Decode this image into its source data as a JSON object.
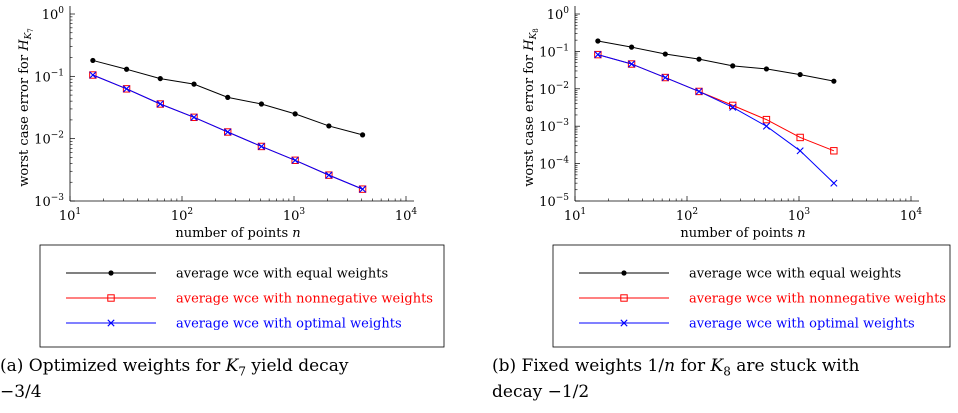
{
  "legend": {
    "equal": "average wce with equal weights",
    "nonneg": "average wce with nonnegative weights",
    "optimal": "average wce with optimal weights"
  },
  "colors": {
    "equal": "#000000",
    "nonneg": "#ff0000",
    "optimal": "#0000ff"
  },
  "chart_data": [
    {
      "type": "line",
      "xscale": "log",
      "yscale": "log",
      "xlabel": "number of points n",
      "ylabel": "worst case error for H_K7",
      "xlim": [
        10,
        10000
      ],
      "ylim": [
        0.001,
        1
      ],
      "xticks": [
        "10^1",
        "10^2",
        "10^3",
        "10^4"
      ],
      "yticks": [
        "10^-3",
        "10^-2",
        "10^-1",
        "10^0"
      ],
      "series": [
        {
          "name": "average wce with equal weights",
          "color": "#000000",
          "marker": "dot",
          "x": [
            16,
            32,
            64,
            128,
            256,
            512,
            1024,
            2048,
            4096
          ],
          "y": [
            0.18,
            0.13,
            0.092,
            0.075,
            0.046,
            0.036,
            0.025,
            0.016,
            0.0115
          ]
        },
        {
          "name": "average wce with nonnegative weights",
          "color": "#ff0000",
          "marker": "square",
          "x": [
            16,
            32,
            64,
            128,
            256,
            512,
            1024,
            2048,
            4096
          ],
          "y": [
            0.105,
            0.063,
            0.036,
            0.022,
            0.0128,
            0.0075,
            0.0045,
            0.0026,
            0.00155
          ]
        },
        {
          "name": "average wce with optimal weights",
          "color": "#0000ff",
          "marker": "x",
          "x": [
            16,
            32,
            64,
            128,
            256,
            512,
            1024,
            2048,
            4096
          ],
          "y": [
            0.105,
            0.063,
            0.036,
            0.022,
            0.0128,
            0.0075,
            0.0045,
            0.0026,
            0.00155
          ]
        }
      ],
      "legend_position": "below",
      "caption_prefix": "(a) Optimized weights for ",
      "caption_sym": "K",
      "caption_sub": "7",
      "caption_suffix": " yield decay",
      "caption_line2": "−3/4"
    },
    {
      "type": "line",
      "xscale": "log",
      "yscale": "log",
      "xlabel": "number of points n",
      "ylabel": "worst case error for H_K8",
      "xlim": [
        10,
        10000
      ],
      "ylim": [
        1e-05,
        1
      ],
      "xticks": [
        "10^1",
        "10^2",
        "10^3",
        "10^4"
      ],
      "yticks": [
        "10^-5",
        "10^-4",
        "10^-3",
        "10^-2",
        "10^-1",
        "10^0"
      ],
      "series": [
        {
          "name": "average wce with equal weights",
          "color": "#000000",
          "marker": "dot",
          "x": [
            16,
            32,
            64,
            128,
            256,
            512,
            1024,
            2048
          ],
          "y": [
            0.19,
            0.13,
            0.085,
            0.062,
            0.041,
            0.034,
            0.024,
            0.016
          ]
        },
        {
          "name": "average wce with nonnegative weights",
          "color": "#ff0000",
          "marker": "square",
          "x": [
            16,
            32,
            64,
            128,
            256,
            512,
            1024,
            2048
          ],
          "y": [
            0.082,
            0.046,
            0.02,
            0.0085,
            0.0036,
            0.0015,
            0.0005,
            0.00022
          ]
        },
        {
          "name": "average wce with optimal weights",
          "color": "#0000ff",
          "marker": "x",
          "x": [
            16,
            32,
            64,
            128,
            256,
            512,
            1024,
            2048
          ],
          "y": [
            0.082,
            0.046,
            0.02,
            0.0085,
            0.0032,
            0.001,
            0.00022,
            3e-05
          ]
        }
      ],
      "legend_position": "below",
      "caption_prefix": "(b) Fixed weights 1/",
      "caption_sym": "n",
      "caption_mid": " for ",
      "caption_sym2": "K",
      "caption_sub": "8",
      "caption_suffix": " are stuck with",
      "caption_line2": "decay −1/2"
    }
  ]
}
